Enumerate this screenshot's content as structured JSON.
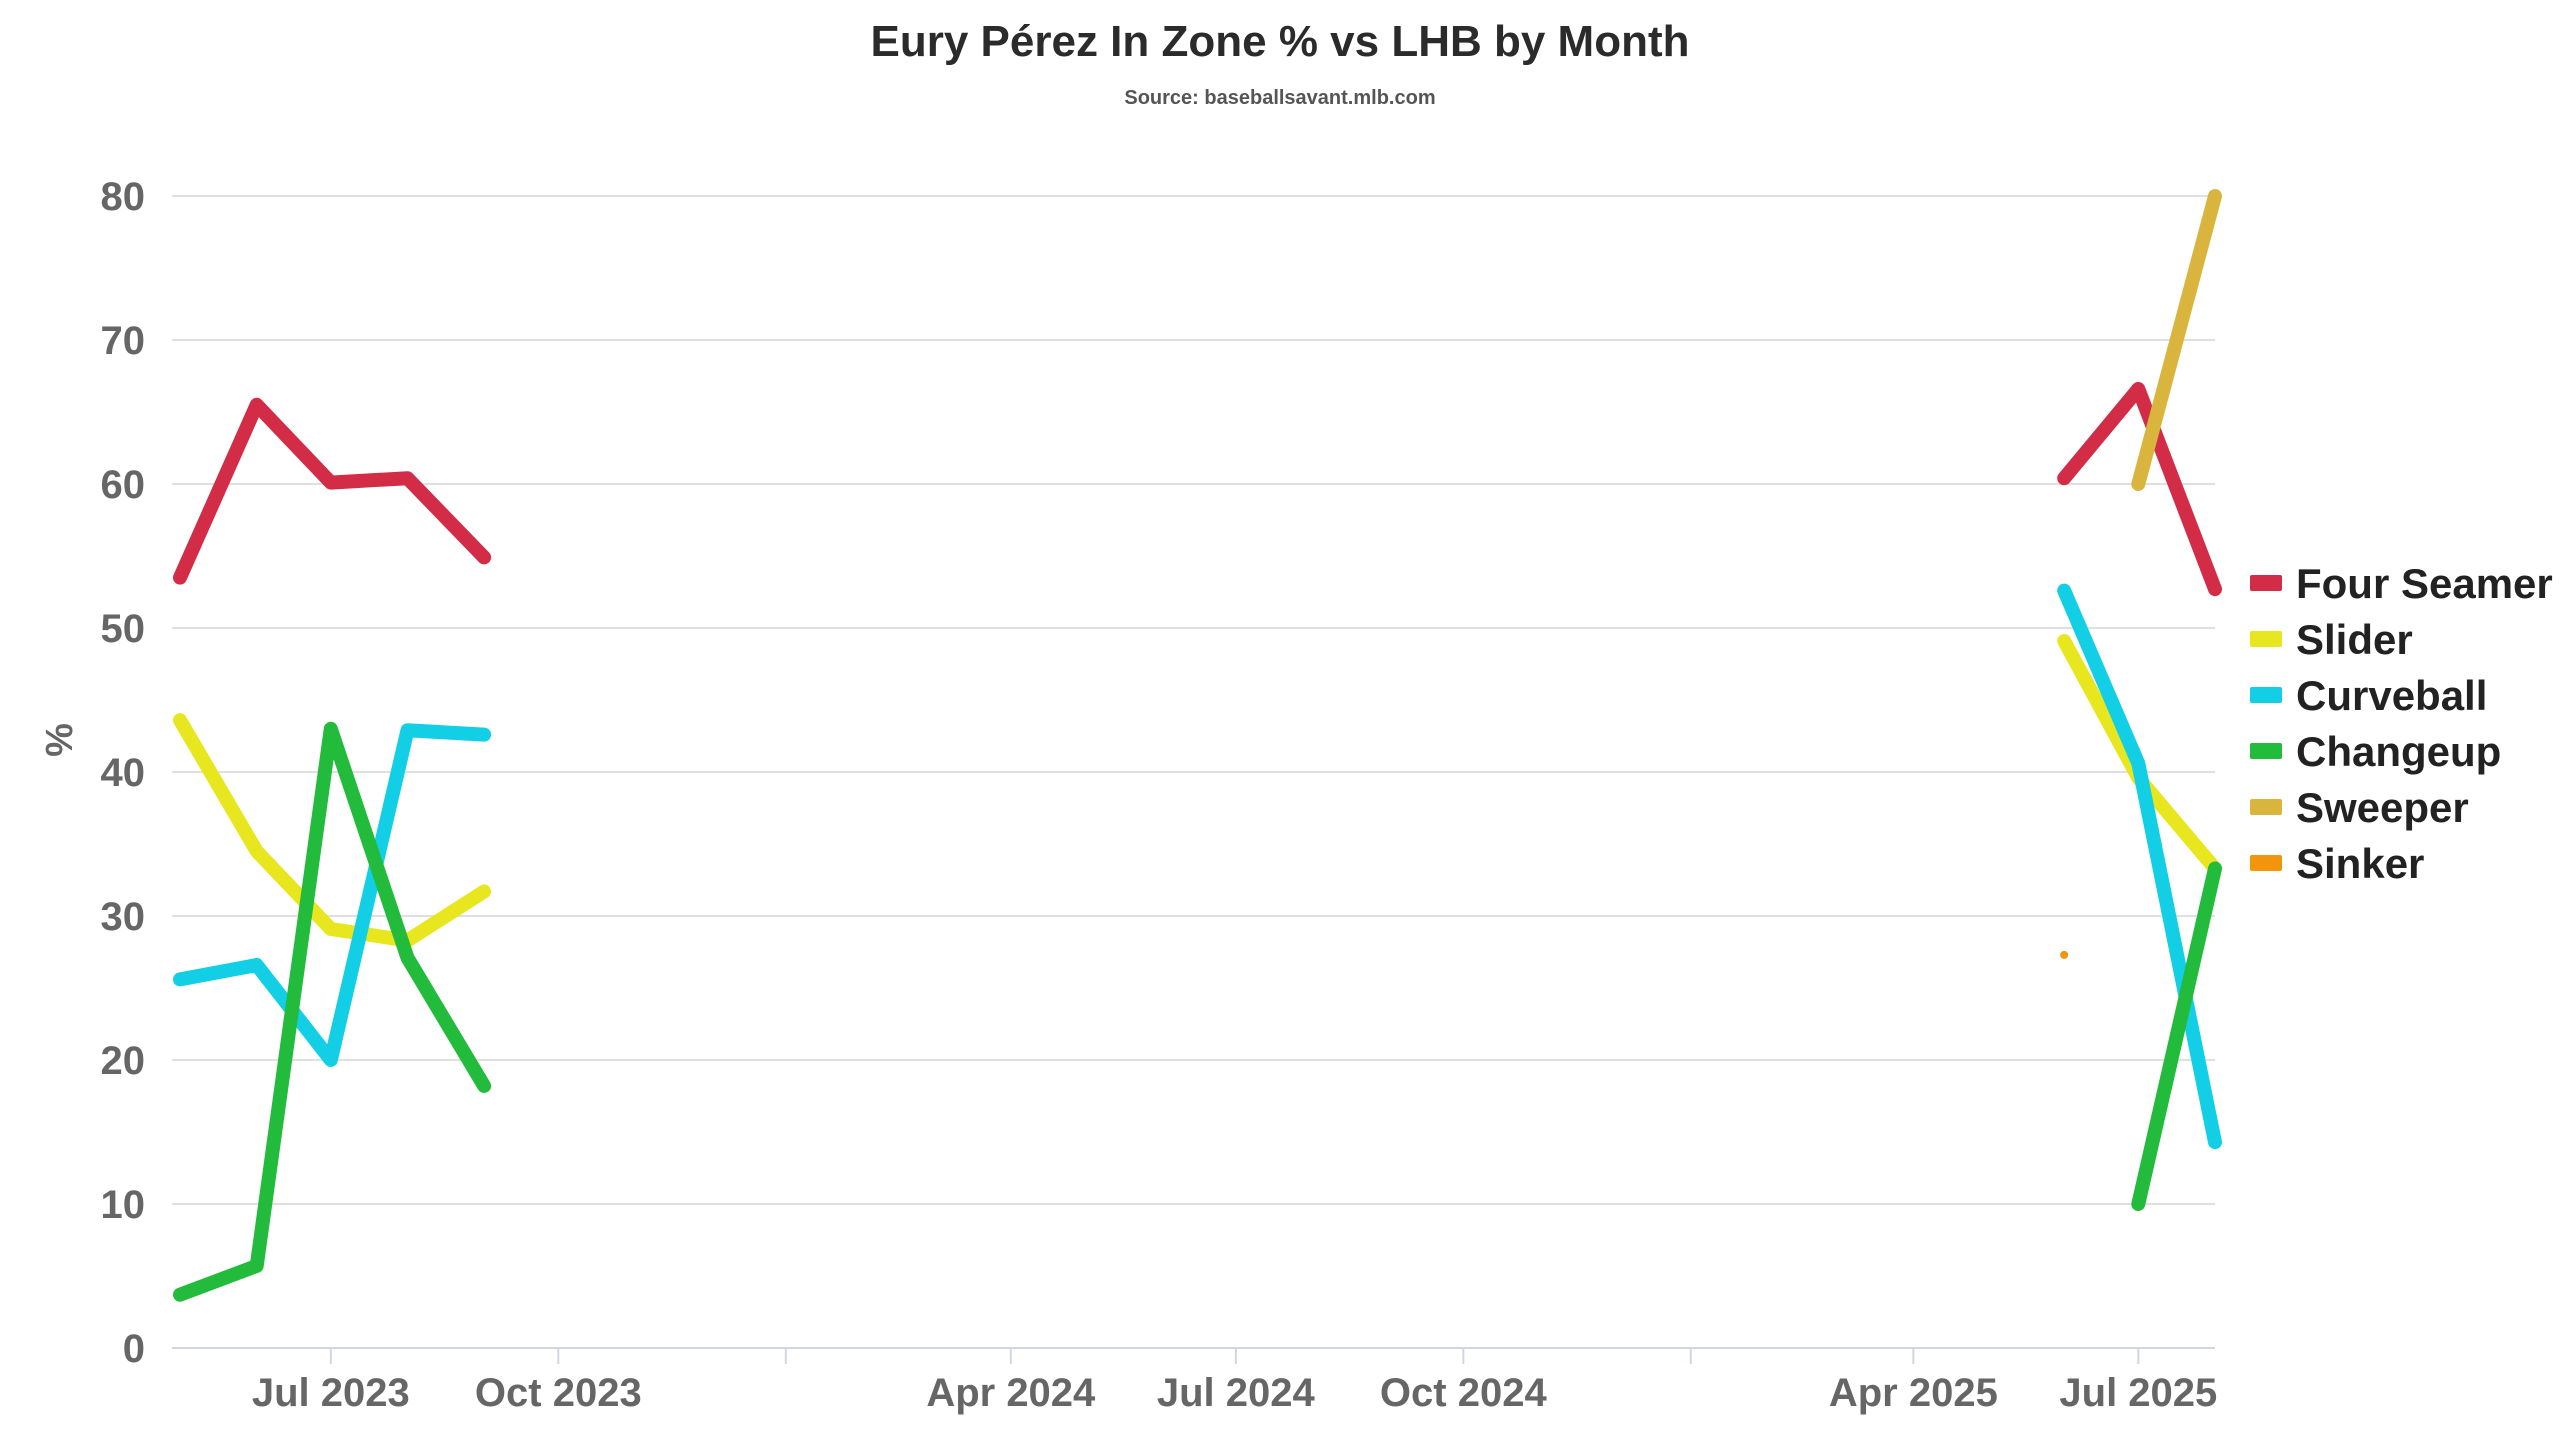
{
  "chart_data": {
    "type": "line",
    "title": "Eury Pérez In Zone % vs LHB by Month",
    "subtitle": "Source: baseballsavant.mlb.com",
    "xlabel": "",
    "ylabel": "%",
    "ylim": [
      0,
      80
    ],
    "yticks": [
      0,
      10,
      20,
      30,
      40,
      50,
      60,
      70,
      80
    ],
    "xlim": [
      "2023-05-01",
      "2025-08-01"
    ],
    "xticks": [
      {
        "date": "2023-07-01",
        "label": "Jul 2023"
      },
      {
        "date": "2023-10-01",
        "label": "Oct 2023"
      },
      {
        "date": "2024-01-01",
        "label": ""
      },
      {
        "date": "2024-04-01",
        "label": "Apr 2024"
      },
      {
        "date": "2024-07-01",
        "label": "Jul 2024"
      },
      {
        "date": "2024-10-01",
        "label": "Oct 2024"
      },
      {
        "date": "2025-01-01",
        "label": ""
      },
      {
        "date": "2025-04-01",
        "label": "Apr 2025"
      },
      {
        "date": "2025-07-01",
        "label": "Jul 2025"
      }
    ],
    "grid": true,
    "legend_position": "right",
    "series": [
      {
        "name": "Four Seamer",
        "color": "#d22c47",
        "segments": [
          [
            [
              "2023-05-01",
              53.5
            ],
            [
              "2023-06-01",
              65.5
            ],
            [
              "2023-07-01",
              60.1
            ],
            [
              "2023-08-01",
              60.4
            ],
            [
              "2023-09-01",
              54.9
            ]
          ],
          [
            [
              "2025-06-01",
              60.4
            ],
            [
              "2025-07-01",
              66.6
            ],
            [
              "2025-08-01",
              52.7
            ]
          ]
        ]
      },
      {
        "name": "Slider",
        "color": "#e8e61e",
        "segments": [
          [
            [
              "2023-05-01",
              43.6
            ],
            [
              "2023-06-01",
              34.5
            ],
            [
              "2023-07-01",
              29.1
            ],
            [
              "2023-08-01",
              28.3
            ],
            [
              "2023-09-01",
              31.7
            ]
          ],
          [
            [
              "2025-06-01",
              49.1
            ],
            [
              "2025-07-01",
              39.6
            ],
            [
              "2025-08-01",
              33.3
            ]
          ]
        ]
      },
      {
        "name": "Curveball",
        "color": "#12cfe6",
        "segments": [
          [
            [
              "2023-05-01",
              25.6
            ],
            [
              "2023-06-01",
              26.6
            ],
            [
              "2023-07-01",
              20.0
            ],
            [
              "2023-08-01",
              42.9
            ],
            [
              "2023-09-01",
              42.6
            ]
          ],
          [
            [
              "2025-06-01",
              52.6
            ],
            [
              "2025-07-01",
              40.6
            ],
            [
              "2025-08-01",
              14.3
            ]
          ]
        ]
      },
      {
        "name": "Changeup",
        "color": "#22bb3c",
        "segments": [
          [
            [
              "2023-05-01",
              3.7
            ],
            [
              "2023-06-01",
              5.7
            ],
            [
              "2023-07-01",
              43.0
            ],
            [
              "2023-08-01",
              27.1
            ],
            [
              "2023-09-01",
              18.2
            ]
          ],
          [
            [
              "2025-07-01",
              10.0
            ],
            [
              "2025-08-01",
              33.3
            ]
          ]
        ]
      },
      {
        "name": "Sweeper",
        "color": "#dab53e",
        "segments": [
          [
            [
              "2025-07-01",
              60.0
            ],
            [
              "2025-08-01",
              80.0
            ]
          ]
        ]
      },
      {
        "name": "Sinker",
        "color": "#f2950c",
        "segments": [
          [
            [
              "2025-06-01",
              27.3
            ]
          ]
        ]
      }
    ]
  }
}
